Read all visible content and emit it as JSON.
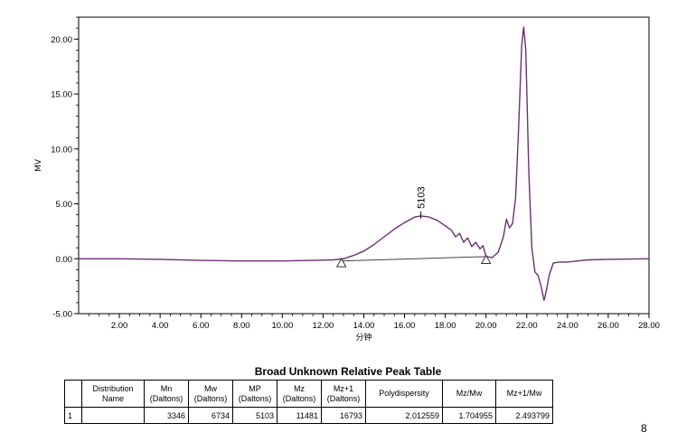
{
  "chart_data": {
    "type": "line",
    "ylabel": "MV",
    "xlabel": "分钟",
    "xlim": [
      0,
      28
    ],
    "ylim": [
      -5,
      22
    ],
    "x_ticks": [
      "2.00",
      "4.00",
      "6.00",
      "8.00",
      "10.00",
      "12.00",
      "14.00",
      "16.00",
      "18.00",
      "20.00",
      "22.00",
      "24.00",
      "26.00",
      "28.00"
    ],
    "y_ticks": [
      "-5.00",
      "0.00",
      "5.00",
      "10.00",
      "15.00",
      "20.00"
    ],
    "peak_label": "5103",
    "peak_marker": [
      16.8,
      3.9
    ],
    "integration_markers": [
      [
        12.9,
        -0.4
      ],
      [
        20.0,
        -0.1
      ]
    ],
    "baseline": [
      [
        12.9,
        -0.2
      ],
      [
        20.0,
        0.2
      ]
    ],
    "series": [
      {
        "color": "#6b2f73",
        "points": [
          [
            0.0,
            0.0
          ],
          [
            2.0,
            0.0
          ],
          [
            4.0,
            -0.05
          ],
          [
            6.0,
            -0.15
          ],
          [
            8.0,
            -0.2
          ],
          [
            10.0,
            -0.2
          ],
          [
            11.5,
            -0.15
          ],
          [
            12.5,
            -0.1
          ],
          [
            13.0,
            0.0
          ],
          [
            13.5,
            0.3
          ],
          [
            14.0,
            0.7
          ],
          [
            14.5,
            1.3
          ],
          [
            15.0,
            2.0
          ],
          [
            15.5,
            2.7
          ],
          [
            16.0,
            3.3
          ],
          [
            16.5,
            3.8
          ],
          [
            16.8,
            3.9
          ],
          [
            17.2,
            3.8
          ],
          [
            17.6,
            3.5
          ],
          [
            18.0,
            3.0
          ],
          [
            18.3,
            2.6
          ],
          [
            18.5,
            2.0
          ],
          [
            18.7,
            2.3
          ],
          [
            18.9,
            1.5
          ],
          [
            19.1,
            1.9
          ],
          [
            19.3,
            1.1
          ],
          [
            19.5,
            1.5
          ],
          [
            19.7,
            0.9
          ],
          [
            19.85,
            1.2
          ],
          [
            20.0,
            0.2
          ],
          [
            20.3,
            0.1
          ],
          [
            20.6,
            0.6
          ],
          [
            20.85,
            2.0
          ],
          [
            21.0,
            3.6
          ],
          [
            21.15,
            2.8
          ],
          [
            21.3,
            3.2
          ],
          [
            21.45,
            5.5
          ],
          [
            21.6,
            12.0
          ],
          [
            21.75,
            19.5
          ],
          [
            21.85,
            21.1
          ],
          [
            21.95,
            19.0
          ],
          [
            22.1,
            8.0
          ],
          [
            22.25,
            1.0
          ],
          [
            22.4,
            -1.2
          ],
          [
            22.55,
            -1.5
          ],
          [
            22.7,
            -2.5
          ],
          [
            22.85,
            -3.8
          ],
          [
            22.95,
            -3.0
          ],
          [
            23.1,
            -1.5
          ],
          [
            23.3,
            -0.4
          ],
          [
            23.6,
            -0.3
          ],
          [
            24.0,
            -0.3
          ],
          [
            24.5,
            -0.2
          ],
          [
            25.0,
            -0.1
          ],
          [
            26.0,
            -0.05
          ],
          [
            28.0,
            0.0
          ]
        ]
      }
    ]
  },
  "table": {
    "title": "Broad Unknown Relative Peak Table",
    "headers": [
      "",
      "Distribution Name",
      "Mn (Daltons)",
      "Mw (Daltons)",
      "MP (Daltons)",
      "Mz (Daltons)",
      "Mz+1 (Daltons)",
      "Polydispersity",
      "Mz/Mw",
      "Mz+1/Mw"
    ],
    "row": [
      "1",
      "",
      "3346",
      "6734",
      "5103",
      "11481",
      "16793",
      "2.012559",
      "1.704955",
      "2.493799"
    ]
  },
  "page_number": "8"
}
